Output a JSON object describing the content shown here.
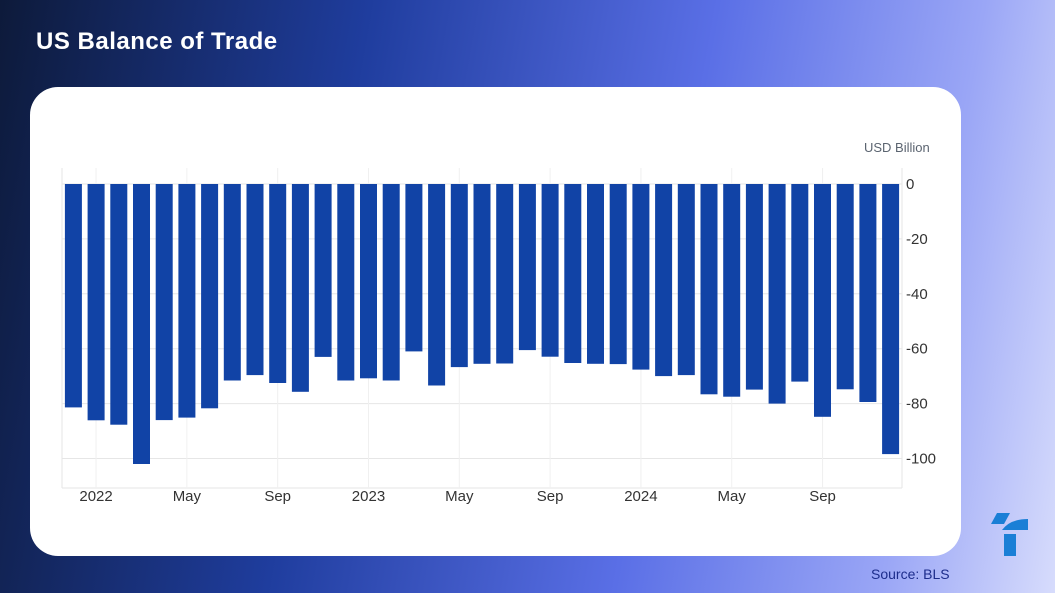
{
  "header": {
    "title": "US Balance of Trade"
  },
  "footer": {
    "source": "Source: BLS"
  },
  "colors": {
    "bar": "#1143a6",
    "grid": "#e6e6e6",
    "axis_text": "#333333",
    "accent": "#1a7fd6"
  },
  "chart_data": {
    "type": "bar",
    "title": "US Balance of Trade",
    "unit_label": "USD Billion",
    "ylabel": "",
    "xlabel": "",
    "ylim": [
      -110,
      0
    ],
    "y_ticks": [
      0,
      -20,
      -40,
      -60,
      -80,
      -100
    ],
    "y_tick_labels": [
      "0",
      "-20",
      "-40",
      "-60",
      "-80",
      "-100"
    ],
    "x_tick_labels": [
      {
        "label": "2022",
        "index": 1
      },
      {
        "label": "May",
        "index": 5
      },
      {
        "label": "Sep",
        "index": 9
      },
      {
        "label": "2023",
        "index": 13
      },
      {
        "label": "May",
        "index": 17
      },
      {
        "label": "Sep",
        "index": 21
      },
      {
        "label": "2024",
        "index": 25
      },
      {
        "label": "May",
        "index": 29
      },
      {
        "label": "Sep",
        "index": 33
      }
    ],
    "categories": [
      "Dec 2021",
      "Jan 2022",
      "Feb 2022",
      "Mar 2022",
      "Apr 2022",
      "May 2022",
      "Jun 2022",
      "Jul 2022",
      "Aug 2022",
      "Sep 2022",
      "Oct 2022",
      "Nov 2022",
      "Dec 2022",
      "Jan 2023",
      "Feb 2023",
      "Mar 2023",
      "Apr 2023",
      "May 2023",
      "Jun 2023",
      "Jul 2023",
      "Aug 2023",
      "Sep 2023",
      "Oct 2023",
      "Nov 2023",
      "Dec 2023",
      "Jan 2024",
      "Feb 2024",
      "Mar 2024",
      "Apr 2024",
      "May 2024",
      "Jun 2024",
      "Jul 2024",
      "Aug 2024",
      "Sep 2024",
      "Oct 2024",
      "Nov 2024",
      "Dec 2024"
    ],
    "values": [
      -81.4,
      -86.1,
      -87.7,
      -102.0,
      -86.0,
      -85.1,
      -81.7,
      -71.6,
      -69.6,
      -72.5,
      -75.7,
      -63.0,
      -71.6,
      -70.8,
      -71.6,
      -61.0,
      -73.4,
      -66.7,
      -65.5,
      -65.4,
      -60.5,
      -62.9,
      -65.2,
      -65.5,
      -65.6,
      -67.6,
      -70.0,
      -69.6,
      -76.6,
      -77.5,
      -74.9,
      -80.0,
      -72.0,
      -84.8,
      -74.8,
      -79.4,
      -98.4
    ],
    "grid": true,
    "y_axis_position": "right"
  }
}
